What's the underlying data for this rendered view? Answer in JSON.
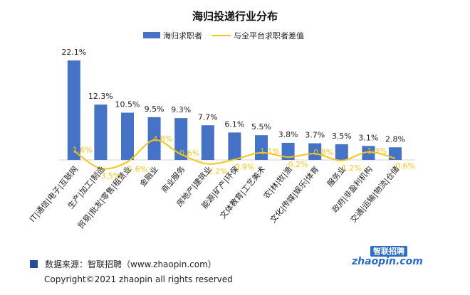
{
  "chart_data": {
    "type": "bar",
    "title": "海归投递行业分布",
    "categories": [
      "IT|通信|电子|互联网",
      "生产|加工|制造",
      "贸易|批发|零售|租赁业",
      "金融业",
      "商业服务",
      "房地产|建筑业",
      "能源|矿产|环保",
      "文体教育|工艺美术",
      "农|林|牧|渔",
      "文化|传媒|娱乐|体育",
      "服务业",
      "政府|非盈利机构",
      "交通|运输|物流|仓储"
    ],
    "series": [
      {
        "name": "海归求职者",
        "type": "bar",
        "values": [
          22.1,
          12.3,
          10.5,
          9.5,
          9.3,
          7.7,
          6.1,
          5.5,
          3.8,
          3.7,
          3.5,
          3.1,
          2.8
        ],
        "labels": [
          "22.1%",
          "12.3%",
          "10.5%",
          "9.5%",
          "9.3%",
          "7.7%",
          "6.1%",
          "5.5%",
          "3.8%",
          "3.7%",
          "3.5%",
          "3.1%",
          "2.8%"
        ],
        "color": "#4472c4"
      },
      {
        "name": "与全平台求职者差值",
        "type": "line",
        "values": [
          1.6,
          -3.5,
          -1.6,
          4.8,
          0.6,
          -2.2,
          -0.9,
          1.1,
          -0.2,
          0.8,
          -1.2,
          1.3,
          -0.6
        ],
        "labels": [
          "1.6%",
          "-3.5%",
          "-1.6%",
          "4.8%",
          "0.6%",
          "-2.2%",
          "-0.9%",
          "1.1%",
          "-0.2%",
          "0.8%",
          "-1.2%",
          "1.3%",
          "-0.6%"
        ],
        "color": "#f5c518"
      }
    ],
    "legend_position": "top",
    "grid": false
  },
  "footer": {
    "source": "数据来源：智联招聘（www.zhaopin.com）",
    "copyright": "Copyright©2021 zhaopin all rights reserved"
  },
  "logo": {
    "top_text": "智联招聘",
    "main_text": "zhaopin.com"
  },
  "colors": {
    "bar": "#4472c4",
    "line": "#f5c518",
    "source_swatch": "#1f4e9c"
  }
}
